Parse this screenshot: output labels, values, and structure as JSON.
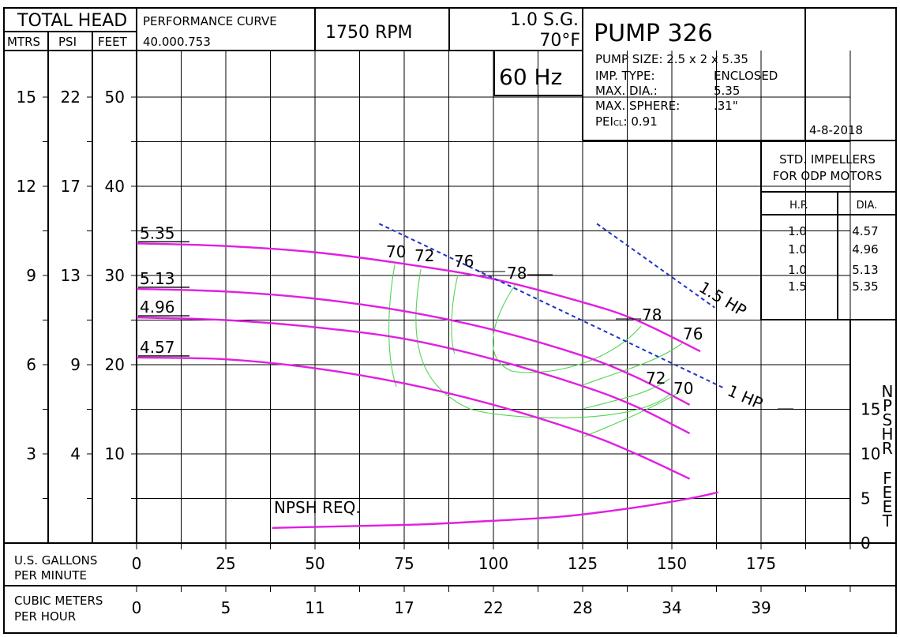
{
  "header": {
    "total_head": "TOTAL HEAD",
    "col_mtrs": "MTRS",
    "col_psi": "PSI",
    "col_feet": "FEET",
    "perf_title": "PERFORMANCE  CURVE",
    "perf_code": "40.000.753",
    "rpm": "1750  RPM",
    "sg": "1.0 S.G.",
    "temp": "70°F",
    "hz": "60 Hz",
    "pump": "PUMP  326",
    "date": "4-8-2018"
  },
  "specs": [
    {
      "label": "PUMP SIZE: 2.5 x 2 x 5.35",
      "value": ""
    },
    {
      "label": "IMP. TYPE:",
      "value": "ENCLOSED"
    },
    {
      "label": "MAX. DIA.:",
      "value": "5.35"
    },
    {
      "label": "MAX. SPHERE:",
      "value": ".31\""
    }
  ],
  "pei": {
    "label_main": "PEI",
    "label_sub": "CL",
    "value": ":  0.91"
  },
  "impellers": {
    "title_line1": "STD.  IMPELLERS",
    "title_line2": "FOR ODP MOTORS",
    "col_hp": "H.P.",
    "col_dia": "DIA.",
    "rows": [
      {
        "hp": "1.0",
        "dia": "4.57"
      },
      {
        "hp": "1.0",
        "dia": "4.96"
      },
      {
        "hp": "1.0",
        "dia": "5.13"
      },
      {
        "hp": "1.5",
        "dia": "5.35"
      }
    ]
  },
  "bottom": {
    "gpm_line1": "U.S.  GALLONS",
    "gpm_line2": "PER  MINUTE",
    "cmh_line1": "CUBIC METERS",
    "cmh_line2": "PER  HOUR"
  },
  "chart_data": {
    "type": "line",
    "x_unit": "U.S. gallons per minute",
    "xlim": [
      0,
      175
    ],
    "ylim_feet": [
      0,
      55
    ],
    "x_ticks": [
      0,
      25,
      50,
      75,
      100,
      125,
      150,
      175
    ],
    "x_ticks_cmh": [
      "0",
      "5",
      "11",
      "17",
      "22",
      "28",
      "34",
      "39"
    ],
    "y_ticks_feet": [
      10,
      20,
      30,
      40,
      50
    ],
    "y_ticks_psi": [
      "4",
      "9",
      "13",
      "17",
      "22"
    ],
    "y_ticks_mtrs": [
      "3",
      "6",
      "9",
      "12",
      "15"
    ],
    "npsh_ticks": [
      0,
      5,
      10,
      15
    ],
    "npsh_axis_title": "NPSHR FEET",
    "series": [
      {
        "name": "5.35",
        "x": [
          0,
          25,
          50,
          75,
          100,
          125,
          140,
          158
        ],
        "y": [
          33.6,
          33.3,
          32.6,
          31.3,
          29.6,
          27.0,
          25.0,
          21.5
        ]
      },
      {
        "name": "5.13",
        "x": [
          0,
          25,
          50,
          75,
          100,
          125,
          140,
          155
        ],
        "y": [
          28.5,
          28.2,
          27.4,
          26.0,
          23.9,
          21.0,
          18.6,
          15.5
        ]
      },
      {
        "name": "4.96",
        "x": [
          0,
          25,
          50,
          75,
          100,
          125,
          140,
          155
        ],
        "y": [
          25.3,
          25.0,
          24.2,
          22.9,
          20.6,
          17.6,
          15.3,
          12.3
        ]
      },
      {
        "name": "4.57",
        "x": [
          0,
          25,
          50,
          75,
          100,
          125,
          140,
          155
        ],
        "y": [
          20.8,
          20.6,
          19.6,
          17.9,
          15.5,
          12.4,
          10.0,
          7.2
        ]
      }
    ],
    "npsh_req": {
      "label": "NPSH REQ.",
      "x": [
        38,
        60,
        80,
        100,
        120,
        140,
        155,
        163
      ],
      "y": [
        1.7,
        1.9,
        2.1,
        2.5,
        3.0,
        4.0,
        5.0,
        5.7
      ]
    },
    "hp_lines": [
      {
        "label": "1 HP",
        "x": [
          68,
          165
        ],
        "y": [
          35.8,
          17.3
        ]
      },
      {
        "label": "1.5 HP",
        "x": [
          129,
          162
        ],
        "y": [
          35.8,
          26.4
        ]
      }
    ],
    "efficiency_labels": [
      "70",
      "72",
      "76",
      "78",
      "78",
      "76",
      "72",
      "70"
    ]
  }
}
